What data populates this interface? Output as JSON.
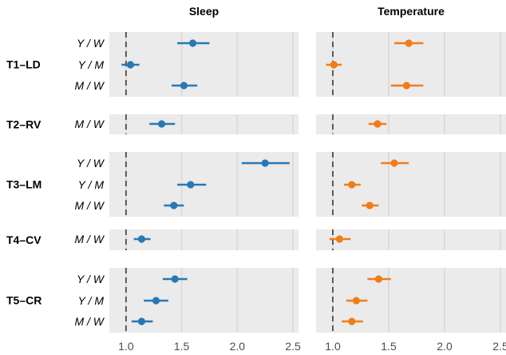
{
  "chart_data": {
    "type": "scatter",
    "subtype": "forest-plot",
    "panels": [
      {
        "key": "sleep",
        "title": "Sleep",
        "color": "#2878b5"
      },
      {
        "key": "temperature",
        "title": "Temperature",
        "color": "#f07d19"
      }
    ],
    "xlim": [
      0.85,
      2.55
    ],
    "xticks": [
      "1.0",
      "1.5",
      "2.0",
      "2.5"
    ],
    "reference_line": 1.0,
    "grid": true,
    "groups": [
      {
        "label": "T1–LD",
        "rows": [
          {
            "label": "Y / W",
            "sleep": {
              "est": 1.6,
              "lo": 1.46,
              "hi": 1.75
            },
            "temperature": {
              "est": 1.68,
              "lo": 1.55,
              "hi": 1.81
            }
          },
          {
            "label": "Y / M",
            "sleep": {
              "est": 1.04,
              "lo": 0.96,
              "hi": 1.12
            },
            "temperature": {
              "est": 1.01,
              "lo": 0.94,
              "hi": 1.08
            }
          },
          {
            "label": "M / W",
            "sleep": {
              "est": 1.52,
              "lo": 1.41,
              "hi": 1.64
            },
            "temperature": {
              "est": 1.66,
              "lo": 1.52,
              "hi": 1.81
            }
          }
        ]
      },
      {
        "label": "T2–RV",
        "rows": [
          {
            "label": "M / W",
            "sleep": {
              "est": 1.32,
              "lo": 1.21,
              "hi": 1.44
            },
            "temperature": {
              "est": 1.4,
              "lo": 1.32,
              "hi": 1.48
            }
          }
        ]
      },
      {
        "label": "T3–LM",
        "rows": [
          {
            "label": "Y / W",
            "sleep": {
              "est": 2.25,
              "lo": 2.04,
              "hi": 2.47
            },
            "temperature": {
              "est": 1.55,
              "lo": 1.43,
              "hi": 1.68
            }
          },
          {
            "label": "Y / M",
            "sleep": {
              "est": 1.58,
              "lo": 1.46,
              "hi": 1.72
            },
            "temperature": {
              "est": 1.17,
              "lo": 1.1,
              "hi": 1.25
            }
          },
          {
            "label": "M / W",
            "sleep": {
              "est": 1.43,
              "lo": 1.34,
              "hi": 1.52
            },
            "temperature": {
              "est": 1.33,
              "lo": 1.26,
              "hi": 1.41
            }
          }
        ]
      },
      {
        "label": "T4–CV",
        "rows": [
          {
            "label": "M / W",
            "sleep": {
              "est": 1.14,
              "lo": 1.07,
              "hi": 1.22
            },
            "temperature": {
              "est": 1.06,
              "lo": 0.97,
              "hi": 1.16
            }
          }
        ]
      },
      {
        "label": "T5–CR",
        "rows": [
          {
            "label": "Y / W",
            "sleep": {
              "est": 1.44,
              "lo": 1.33,
              "hi": 1.55
            },
            "temperature": {
              "est": 1.41,
              "lo": 1.31,
              "hi": 1.52
            }
          },
          {
            "label": "Y / M",
            "sleep": {
              "est": 1.27,
              "lo": 1.16,
              "hi": 1.38
            },
            "temperature": {
              "est": 1.21,
              "lo": 1.12,
              "hi": 1.31
            }
          },
          {
            "label": "M / W",
            "sleep": {
              "est": 1.14,
              "lo": 1.05,
              "hi": 1.24
            },
            "temperature": {
              "est": 1.17,
              "lo": 1.08,
              "hi": 1.27
            }
          }
        ]
      }
    ],
    "colors": {
      "panel_background": "#ebebeb",
      "grid": "#d9d9d9",
      "reference_line": "#595959"
    }
  }
}
